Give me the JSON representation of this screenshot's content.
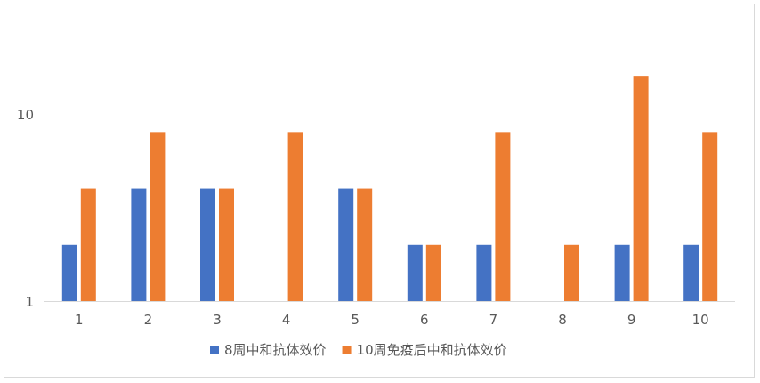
{
  "chart_data": {
    "type": "bar",
    "y_scale": "log",
    "ylim": [
      1,
      20
    ],
    "y_ticks": [
      "1",
      "10"
    ],
    "categories": [
      "1",
      "2",
      "3",
      "4",
      "5",
      "6",
      "7",
      "8",
      "9",
      "10"
    ],
    "series": [
      {
        "name": "8周中和抗体效价",
        "color": "#4472c4",
        "values": [
          2,
          4,
          4,
          null,
          4,
          2,
          2,
          null,
          2,
          2
        ]
      },
      {
        "name": "10周免疫后中和抗体效价",
        "color": "#ed7d31",
        "values": [
          4,
          8,
          4,
          8,
          4,
          2,
          8,
          2,
          16,
          8
        ]
      }
    ],
    "legend_position": "bottom",
    "grid": false
  }
}
